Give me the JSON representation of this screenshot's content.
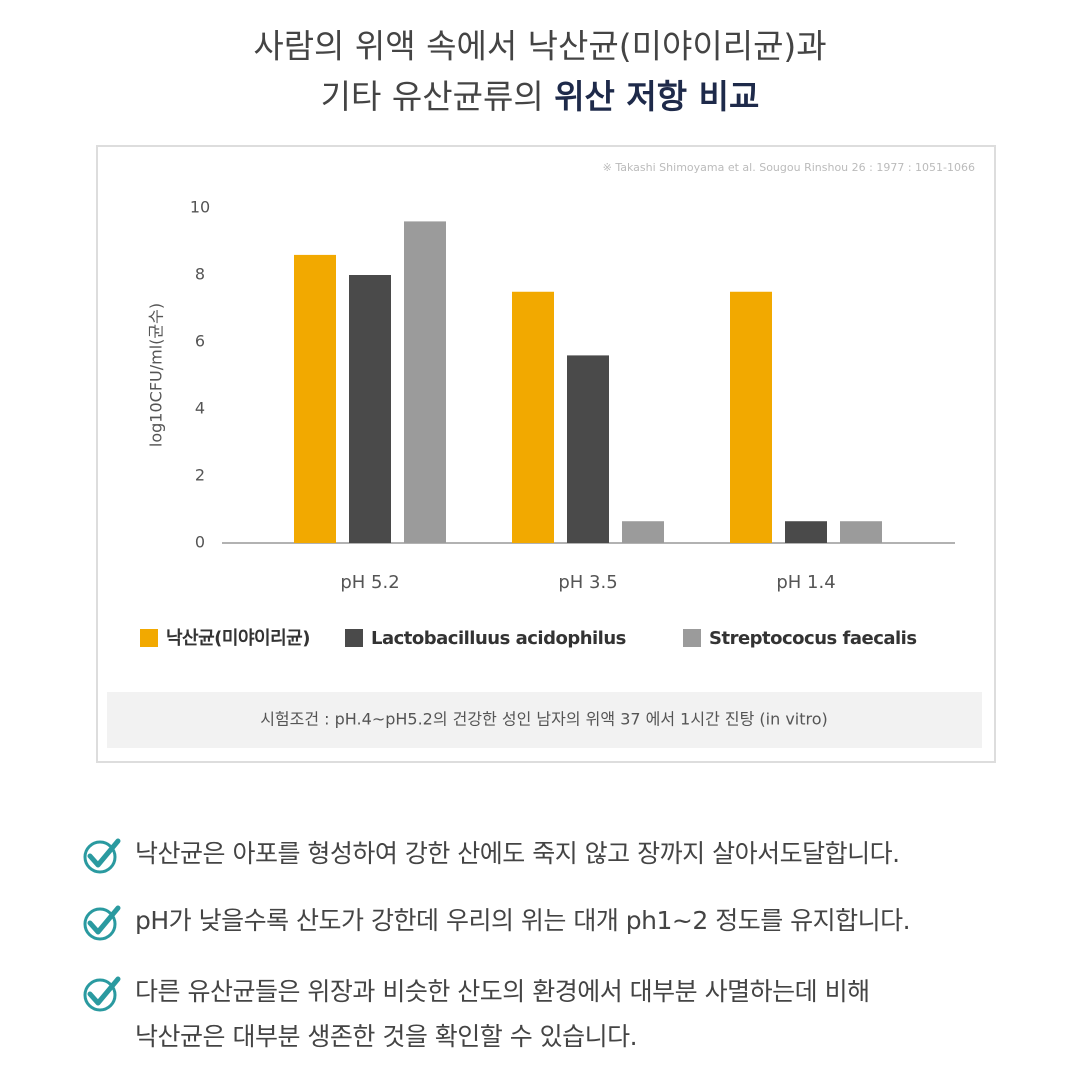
{
  "header": {
    "line1": "사람의 위액 속에서 낙산균(미야이리균)과",
    "line2_plain": "기타 유산균류의",
    "line2_bold": "위산 저항 비교"
  },
  "chart_data": {
    "type": "bar",
    "source": "※ Takashi Shimoyama et al. Sougou Rinshou 26 : 1977 : 1051-1066",
    "y_label": "log10CFU/ml(균수)",
    "categories": [
      "pH 5.2",
      "pH 3.5",
      "pH 1.4"
    ],
    "series": [
      {
        "name": "낙산균(미야이리균)",
        "color": "#f2a900",
        "values": [
          8.6,
          7.5,
          7.5
        ]
      },
      {
        "name": "Lactobacilluus acidophilus",
        "color": "#4a4a4a",
        "values": [
          8.0,
          5.6,
          0.65
        ]
      },
      {
        "name": "Streptococus faecalis",
        "color": "#9b9b9b",
        "values": [
          9.6,
          0.65,
          0.65
        ]
      }
    ],
    "ylim": [
      0,
      10
    ],
    "yticks": [
      0,
      2,
      4,
      6,
      8,
      10
    ],
    "grid": false,
    "note": "시험조건 : pH.4~pH5.2의 건강한 성인 남자의 위액 37 에서 1시간 진탕 (in vitro)"
  },
  "bullets": [
    [
      "낙산균은 아포를 형성하여 강한 산에도 죽지 않고 장까지 살아서도달합니다."
    ],
    [
      "pH가 낮을수록 산도가 강한데 우리의 위는 대개 ph1~2 정도를 유지합니다."
    ],
    [
      "다른 유산균들은 위장과 비슷한 산도의 환경에서 대부분 사멸하는데 비해",
      "낙산균은 대부분 생존한 것을 확인할 수 있습니다."
    ]
  ]
}
